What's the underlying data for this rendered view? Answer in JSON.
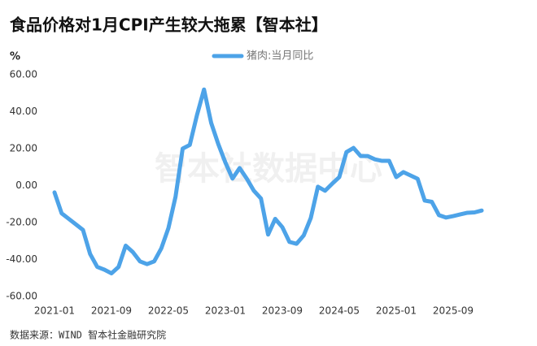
{
  "chart_data": {
    "type": "line",
    "title": "食品价格对1月CPI产生较大拖累【智本社】",
    "y_unit": "%",
    "watermark": "智本社数据中心",
    "source": "数据来源：WIND 智本社金融研究院",
    "categories": [
      "2021-01",
      null,
      null,
      null,
      null,
      null,
      null,
      null,
      "2021-09",
      null,
      null,
      null,
      null,
      null,
      null,
      null,
      "2022-05",
      null,
      null,
      null,
      null,
      null,
      null,
      null,
      "2023-01",
      null,
      null,
      null,
      null,
      null,
      null,
      null,
      "2023-09",
      null,
      null,
      null,
      null,
      null,
      null,
      null,
      "2024-05",
      null,
      null,
      null,
      null,
      null,
      null,
      null,
      "2025-01",
      null,
      null,
      null,
      null,
      null,
      null,
      null,
      "2025-09",
      null,
      null,
      null,
      null
    ],
    "series": [
      {
        "name": "猪肉:当月同比",
        "color": "#4da3e8",
        "values": [
          -3.7,
          -15,
          -18,
          -21,
          -24,
          -37,
          -44,
          -45.5,
          -47.5,
          -44,
          -32.5,
          -36,
          -41,
          -42.5,
          -41,
          -34,
          -23,
          -6,
          20,
          22,
          38,
          52,
          34,
          22.5,
          12.5,
          3.8,
          9.5,
          3.8,
          -2.8,
          -7,
          -26.5,
          -18,
          -22.5,
          -30.5,
          -31.5,
          -27,
          -17.5,
          -0.6,
          -2.8,
          1,
          4.6,
          18.1,
          20.4,
          16,
          16,
          14.2,
          13.4,
          13.4,
          4.6,
          7.3,
          5.5,
          3.7,
          -8.1,
          -8.8,
          -16,
          -17.3,
          -16.5,
          -15.6,
          -14.7,
          -14.5,
          -13.5
        ]
      }
    ],
    "ylim": [
      -60,
      60
    ],
    "yticks": [
      {
        "value": -60,
        "label": "-60.00"
      },
      {
        "value": -40,
        "label": "-40.00"
      },
      {
        "value": -20,
        "label": "-20.00"
      },
      {
        "value": 0,
        "label": "0.00"
      },
      {
        "value": 20,
        "label": "20.00"
      },
      {
        "value": 40,
        "label": "40.00"
      },
      {
        "value": 60,
        "label": "60.00"
      }
    ],
    "grid": false
  }
}
